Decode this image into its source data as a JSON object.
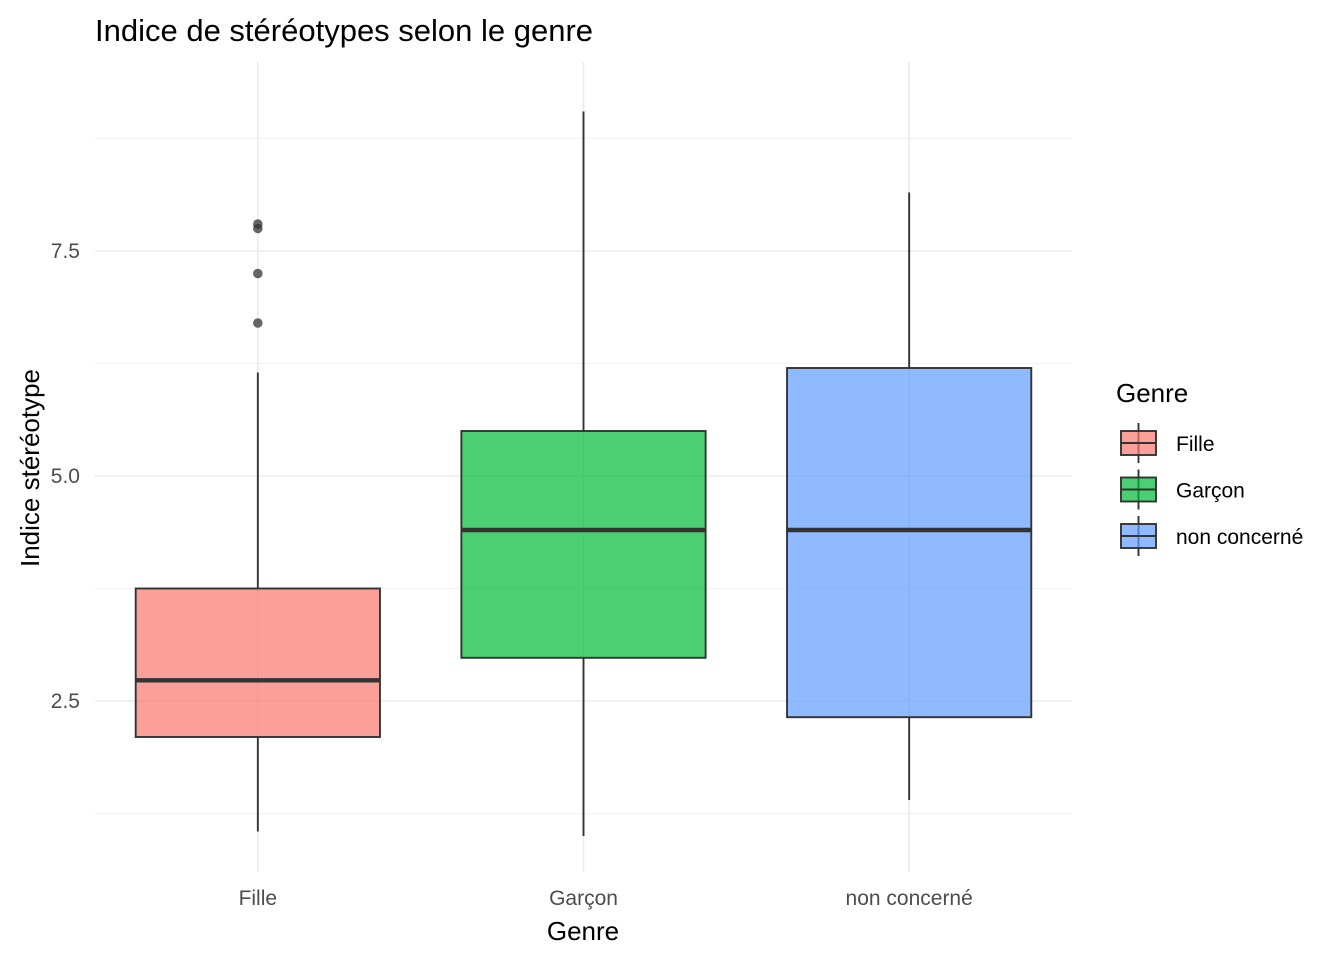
{
  "chart_data": {
    "type": "boxplot",
    "title": "Indice de stéréotypes selon le genre",
    "xlabel": "Genre",
    "ylabel": "Indice stéréotype",
    "categories": [
      "Fille",
      "Garçon",
      "non concerné"
    ],
    "ylim": [
      0.6,
      9.6
    ],
    "yticks": [
      2.5,
      5.0,
      7.5
    ],
    "ytick_labels": [
      "2.5",
      "5.0",
      "7.5"
    ],
    "grid": true,
    "boxes": [
      {
        "category": "Fille",
        "whisker_low": 1.05,
        "q1": 2.1,
        "median": 2.73,
        "q3": 3.75,
        "whisker_high": 6.15,
        "outliers": [
          6.7,
          7.25,
          7.75,
          7.8
        ],
        "color": "#F8766D"
      },
      {
        "category": "Garçon",
        "whisker_low": 1.0,
        "q1": 2.98,
        "median": 4.4,
        "q3": 5.5,
        "whisker_high": 9.05,
        "outliers": [],
        "color": "#00BA38"
      },
      {
        "category": "non concerné",
        "whisker_low": 1.4,
        "q1": 2.32,
        "median": 4.4,
        "q3": 6.2,
        "whisker_high": 8.15,
        "outliers": [],
        "color": "#619CFF"
      }
    ],
    "legend": {
      "title": "Genre",
      "position": "right",
      "entries": [
        "Fille",
        "Garçon",
        "non concerné"
      ]
    }
  }
}
